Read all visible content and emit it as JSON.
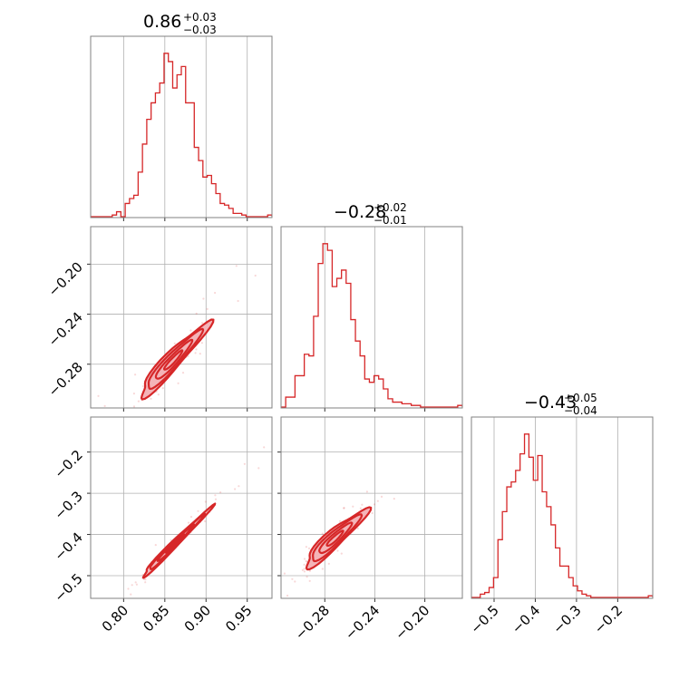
{
  "chart_data": {
    "type": "corner",
    "line_color": "#d62728",
    "fill_color": "#f4b4b8",
    "grid": true,
    "parameters": [
      {
        "range": [
          0.76,
          0.98
        ],
        "ticks": [
          0.8,
          0.85,
          0.9,
          0.95
        ],
        "tick_labels": [
          "0.80",
          "0.85",
          "0.90",
          "0.95"
        ],
        "title": {
          "median": "0.86",
          "plus": "+0.03",
          "minus": "−0.03"
        }
      },
      {
        "range": [
          -0.315,
          -0.17
        ],
        "ticks": [
          -0.28,
          -0.24,
          -0.2
        ],
        "tick_labels": [
          "−0.28",
          "−0.24",
          "−0.20"
        ],
        "title": {
          "median": "−0.28",
          "plus": "+0.02",
          "minus": "−0.01"
        }
      },
      {
        "range": [
          -0.555,
          -0.115
        ],
        "ticks": [
          -0.5,
          -0.4,
          -0.3,
          -0.2
        ],
        "tick_labels": [
          "−0.5",
          "−0.4",
          "−0.3",
          "−0.2"
        ],
        "title": {
          "median": "−0.43",
          "plus": "+0.05",
          "minus": "−0.04"
        }
      }
    ],
    "histograms": [
      [
        0,
        0,
        0,
        0,
        0,
        0.01,
        0.03,
        0,
        0.08,
        0.11,
        0.13,
        0.27,
        0.44,
        0.59,
        0.69,
        0.75,
        0.81,
        0.99,
        0.94,
        0.78,
        0.86,
        0.91,
        0.69,
        0.69,
        0.42,
        0.34,
        0.24,
        0.25,
        0.2,
        0.14,
        0.08,
        0.07,
        0.05,
        0.02,
        0.02,
        0.01,
        0,
        0,
        0,
        0,
        0,
        0.01
      ],
      [
        0,
        0.06,
        0.06,
        0.19,
        0.19,
        0.32,
        0.31,
        0.55,
        0.87,
        0.99,
        0.95,
        0.73,
        0.78,
        0.83,
        0.75,
        0.53,
        0.4,
        0.31,
        0.17,
        0.15,
        0.19,
        0.17,
        0.11,
        0.05,
        0.03,
        0.03,
        0.02,
        0.02,
        0.01,
        0.01,
        0,
        0,
        0,
        0,
        0,
        0,
        0,
        0,
        0.01
      ],
      [
        0,
        0,
        0.02,
        0.03,
        0.06,
        0.12,
        0.35,
        0.52,
        0.67,
        0.7,
        0.77,
        0.87,
        0.99,
        0.85,
        0.71,
        0.86,
        0.64,
        0.55,
        0.44,
        0.3,
        0.19,
        0.19,
        0.12,
        0.07,
        0.04,
        0.02,
        0.01,
        0,
        0,
        0,
        0,
        0,
        0,
        0,
        0,
        0,
        0,
        0,
        0,
        0,
        0.01
      ]
    ],
    "pairs": [
      {
        "x": 0,
        "y": 1,
        "slope": 0.667,
        "mean": [
          0.86,
          -0.277
        ],
        "spread": [
          0.022,
          0.005
        ]
      },
      {
        "x": 0,
        "y": 2,
        "slope": 2.0,
        "mean": [
          0.862,
          -0.423
        ],
        "spread": [
          0.022,
          0.006
        ]
      },
      {
        "x": 1,
        "y": 2,
        "slope": 2.6,
        "mean": [
          -0.272,
          -0.41
        ],
        "spread": [
          0.013,
          0.014
        ]
      }
    ]
  }
}
